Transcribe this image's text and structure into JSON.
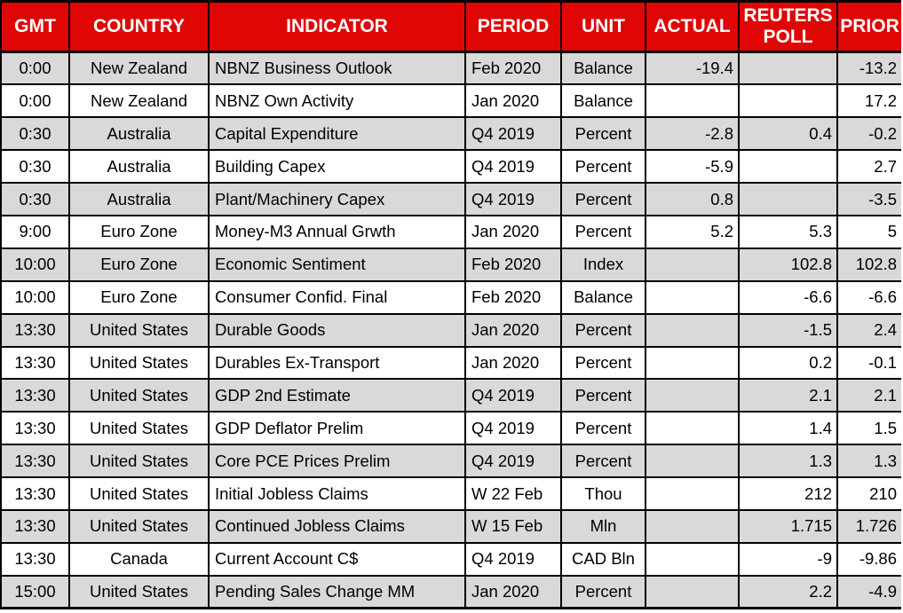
{
  "colors": {
    "header_bg": "#e00606",
    "header_text": "#ffffff",
    "row_alt_bg": "#d9d9d9",
    "row_bg": "#ffffff",
    "border": "#000000",
    "text": "#000000"
  },
  "table": {
    "columns": [
      {
        "key": "gmt",
        "label": "GMT",
        "align": "center"
      },
      {
        "key": "country",
        "label": "COUNTRY",
        "align": "center"
      },
      {
        "key": "indicator",
        "label": "INDICATOR",
        "align": "left"
      },
      {
        "key": "period",
        "label": "PERIOD",
        "align": "left"
      },
      {
        "key": "unit",
        "label": "UNIT",
        "align": "center"
      },
      {
        "key": "actual",
        "label": "ACTUAL",
        "align": "right"
      },
      {
        "key": "reuters_poll",
        "label": "REUTERS POLL",
        "align": "right"
      },
      {
        "key": "prior",
        "label": "PRIOR",
        "align": "right"
      }
    ],
    "rows": [
      [
        "0:00",
        "New Zealand",
        "NBNZ Business Outlook",
        "Feb 2020",
        "Balance",
        "-19.4",
        "",
        "-13.2"
      ],
      [
        "0:00",
        "New Zealand",
        "NBNZ Own Activity",
        "Jan 2020",
        "Balance",
        "",
        "",
        "17.2"
      ],
      [
        "0:30",
        "Australia",
        "Capital Expenditure",
        "Q4 2019",
        "Percent",
        "-2.8",
        "0.4",
        "-0.2"
      ],
      [
        "0:30",
        "Australia",
        "Building Capex",
        "Q4 2019",
        "Percent",
        "-5.9",
        "",
        "2.7"
      ],
      [
        "0:30",
        "Australia",
        "Plant/Machinery Capex",
        "Q4 2019",
        "Percent",
        "0.8",
        "",
        "-3.5"
      ],
      [
        "9:00",
        "Euro Zone",
        "Money-M3 Annual Grwth",
        "Jan 2020",
        "Percent",
        "5.2",
        "5.3",
        "5"
      ],
      [
        "10:00",
        "Euro Zone",
        "Economic Sentiment",
        "Feb 2020",
        "Index",
        "",
        "102.8",
        "102.8"
      ],
      [
        "10:00",
        "Euro Zone",
        "Consumer Confid. Final",
        "Feb 2020",
        "Balance",
        "",
        "-6.6",
        "-6.6"
      ],
      [
        "13:30",
        "United States",
        "Durable Goods",
        "Jan 2020",
        "Percent",
        "",
        "-1.5",
        "2.4"
      ],
      [
        "13:30",
        "United States",
        "Durables Ex-Transport",
        "Jan 2020",
        "Percent",
        "",
        "0.2",
        "-0.1"
      ],
      [
        "13:30",
        "United States",
        "GDP 2nd Estimate",
        "Q4 2019",
        "Percent",
        "",
        "2.1",
        "2.1"
      ],
      [
        "13:30",
        "United States",
        "GDP Deflator Prelim",
        "Q4 2019",
        "Percent",
        "",
        "1.4",
        "1.5"
      ],
      [
        "13:30",
        "United States",
        "Core PCE Prices Prelim",
        "Q4 2019",
        "Percent",
        "",
        "1.3",
        "1.3"
      ],
      [
        "13:30",
        "United States",
        "Initial Jobless Claims",
        "W 22 Feb",
        "Thou",
        "",
        "212",
        "210"
      ],
      [
        "13:30",
        "United States",
        "Continued Jobless Claims",
        "W 15 Feb",
        "Mln",
        "",
        "1.715",
        "1.726"
      ],
      [
        "13:30",
        "Canada",
        "Current Account C$",
        "Q4 2019",
        "CAD Bln",
        "",
        "-9",
        "-9.86"
      ],
      [
        "15:00",
        "United States",
        "Pending Sales Change MM",
        "Jan 2020",
        "Percent",
        "",
        "2.2",
        "-4.9"
      ]
    ]
  }
}
